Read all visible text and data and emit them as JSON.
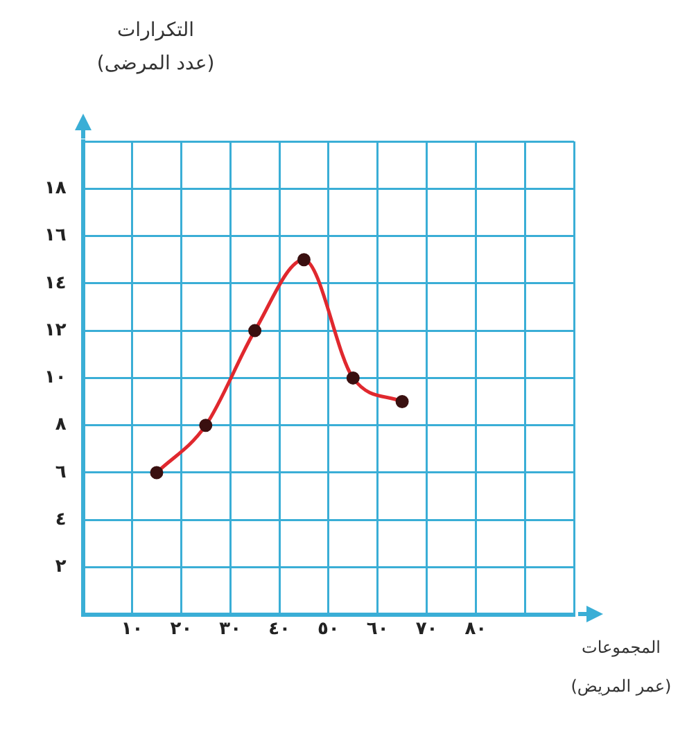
{
  "chart_data": {
    "type": "line",
    "xlabel": "المجموعات\n(عمر المريض)",
    "ylabel": "التكرارات\n(عدد المرضى)",
    "x": [
      15,
      25,
      35,
      45,
      55,
      65
    ],
    "series": [
      {
        "color": "#e0282e",
        "values": [
          6,
          8,
          12,
          15,
          10,
          9
        ]
      }
    ],
    "xlim": [
      0,
      100
    ],
    "xticks": [
      {
        "value": 0,
        "label": null
      },
      {
        "value": 10,
        "label": "١٠"
      },
      {
        "value": 20,
        "label": "٢٠"
      },
      {
        "value": 30,
        "label": "٣٠"
      },
      {
        "value": 40,
        "label": "٤٠"
      },
      {
        "value": 50,
        "label": "٥٠"
      },
      {
        "value": 60,
        "label": "٦٠"
      },
      {
        "value": 70,
        "label": "٧٠"
      },
      {
        "value": 80,
        "label": "٨٠"
      },
      {
        "value": 90,
        "label": null
      },
      {
        "value": 100,
        "label": null
      }
    ],
    "ylim": [
      0,
      20
    ],
    "yticks": [
      {
        "value": 0,
        "label": null
      },
      {
        "value": 2,
        "label": "٢"
      },
      {
        "value": 4,
        "label": "٤"
      },
      {
        "value": 6,
        "label": "٦"
      },
      {
        "value": 8,
        "label": "٨"
      },
      {
        "value": 10,
        "label": "١٠"
      },
      {
        "value": 12,
        "label": "١٢"
      },
      {
        "value": 14,
        "label": "١٤"
      },
      {
        "value": 16,
        "label": "١٦"
      },
      {
        "value": 18,
        "label": "١٨"
      },
      {
        "value": 20,
        "label": null
      }
    ],
    "grid": true,
    "marker": "circle",
    "line_style": "solid",
    "legend": false
  }
}
